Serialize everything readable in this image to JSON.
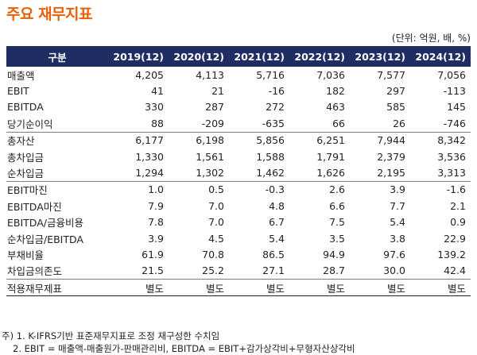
{
  "title": "주요 재무지표",
  "unit": "(단위: 억원, 배, %)",
  "table": {
    "label_header": "구분",
    "years": [
      "2019(12)",
      "2020(12)",
      "2021(12)",
      "2022(12)",
      "2023(12)",
      "2024(12)"
    ],
    "rows": [
      {
        "label": "매출액",
        "values": [
          "4,205",
          "4,113",
          "5,716",
          "7,036",
          "7,577",
          "7,056"
        ]
      },
      {
        "label": "EBIT",
        "values": [
          "41",
          "21",
          "-16",
          "182",
          "297",
          "-113"
        ]
      },
      {
        "label": "EBITDA",
        "values": [
          "330",
          "287",
          "272",
          "463",
          "585",
          "145"
        ]
      },
      {
        "label": "당기순이익",
        "values": [
          "88",
          "-209",
          "-635",
          "66",
          "26",
          "-746"
        ]
      },
      {
        "label": "총자산",
        "values": [
          "6,177",
          "6,198",
          "5,856",
          "6,251",
          "7,944",
          "8,342"
        ]
      },
      {
        "label": "총차입금",
        "values": [
          "1,330",
          "1,561",
          "1,588",
          "1,791",
          "2,379",
          "3,536"
        ]
      },
      {
        "label": "순차입금",
        "values": [
          "1,294",
          "1,302",
          "1,462",
          "1,626",
          "2,195",
          "3,313"
        ]
      },
      {
        "label": "EBIT마진",
        "values": [
          "1.0",
          "0.5",
          "-0.3",
          "2.6",
          "3.9",
          "-1.6"
        ]
      },
      {
        "label": "EBITDA마진",
        "values": [
          "7.9",
          "7.0",
          "4.8",
          "6.6",
          "7.7",
          "2.1"
        ]
      },
      {
        "label": "EBITDA/금융비용",
        "values": [
          "7.8",
          "7.0",
          "6.7",
          "7.5",
          "5.4",
          "0.9"
        ]
      },
      {
        "label": "순차입금/EBITDA",
        "values": [
          "3.9",
          "4.5",
          "5.4",
          "3.5",
          "3.8",
          "22.9"
        ]
      },
      {
        "label": "부채비율",
        "values": [
          "61.9",
          "70.8",
          "86.5",
          "94.9",
          "97.6",
          "139.2"
        ]
      },
      {
        "label": "차입금의존도",
        "values": [
          "21.5",
          "25.2",
          "27.1",
          "28.7",
          "30.0",
          "42.4"
        ]
      },
      {
        "label": "적용재무제표",
        "values": [
          "별도",
          "별도",
          "별도",
          "별도",
          "별도",
          "별도"
        ]
      }
    ]
  },
  "notes": {
    "note1": "주) 1. K-IFRS기반 표준재무지표로 조정 재구성한 수치임",
    "note2": "2. EBIT = 매출액-매출원가-판매관리비, EBITDA = EBIT+감가상각비+무형자산상각비"
  }
}
